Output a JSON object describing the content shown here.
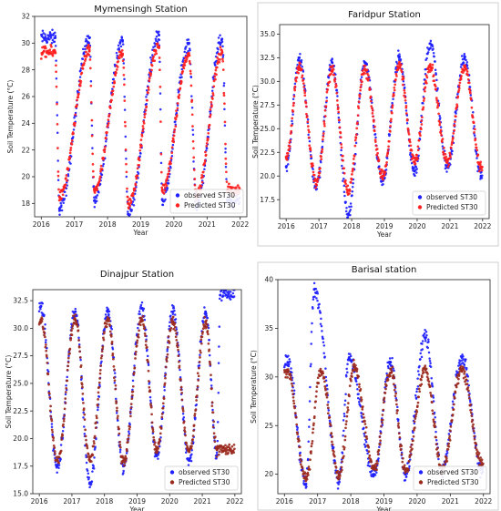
{
  "chart_data": [
    {
      "type": "scatter",
      "title": "Mymensingh Station",
      "xlabel": "Year",
      "ylabel": "Soil Temperature (°C)",
      "xlim": [
        2015.8,
        2022.2
      ],
      "ylim": [
        17,
        32
      ],
      "xticks": [
        2016,
        2017,
        2018,
        2019,
        2020,
        2021,
        2022
      ],
      "yticks": [
        18,
        20,
        22,
        24,
        26,
        28,
        30,
        32
      ],
      "legend_position": "bottom-right",
      "series": [
        {
          "name": "observed ST30",
          "color": "#1f1fff",
          "peak_days": [
            {
              "x": 2016.42,
              "y": 30.4
            },
            {
              "x": 2017.45,
              "y": 30.4
            },
            {
              "x": 2018.45,
              "y": 30.2
            },
            {
              "x": 2019.55,
              "y": 30.6
            },
            {
              "x": 2020.45,
              "y": 30.0
            },
            {
              "x": 2021.45,
              "y": 30.3
            }
          ],
          "trough_days": [
            {
              "x": 2016.55,
              "y": 17.6
            },
            {
              "x": 2017.6,
              "y": 18.2
            },
            {
              "x": 2018.62,
              "y": 17.2
            },
            {
              "x": 2019.65,
              "y": 18.3
            },
            {
              "x": 2020.68,
              "y": 17.8
            },
            {
              "x": 2021.62,
              "y": 18.2
            }
          ]
        },
        {
          "name": "Predicted ST30",
          "color": "#ff2020",
          "peak_days": [
            {
              "x": 2016.42,
              "y": 29.3
            },
            {
              "x": 2017.45,
              "y": 29.4
            },
            {
              "x": 2018.45,
              "y": 29.2
            },
            {
              "x": 2019.55,
              "y": 29.7
            },
            {
              "x": 2020.45,
              "y": 29.1
            },
            {
              "x": 2021.45,
              "y": 29.3
            }
          ],
          "trough_days": [
            {
              "x": 2016.55,
              "y": 18.5
            },
            {
              "x": 2017.6,
              "y": 19.0
            },
            {
              "x": 2018.62,
              "y": 18.0
            },
            {
              "x": 2019.65,
              "y": 19.0
            },
            {
              "x": 2020.68,
              "y": 18.6
            },
            {
              "x": 2021.62,
              "y": 19.0
            }
          ]
        }
      ]
    },
    {
      "type": "scatter",
      "title": "Faridpur Station",
      "xlabel": "Year",
      "ylabel": "Soil Temperature (°C)",
      "xlim": [
        2015.8,
        2022.2
      ],
      "ylim": [
        15.5,
        36
      ],
      "xticks": [
        2016,
        2017,
        2018,
        2019,
        2020,
        2021,
        2022
      ],
      "yticks": [
        17.5,
        20.0,
        22.5,
        25.0,
        27.5,
        30.0,
        32.5,
        35.0
      ],
      "legend_position": "bottom-right",
      "series": [
        {
          "name": "observed ST30",
          "color": "#1f1fff",
          "peak_days": [
            {
              "x": 2016.4,
              "y": 32.5
            },
            {
              "x": 2017.4,
              "y": 32.0
            },
            {
              "x": 2018.4,
              "y": 32.0
            },
            {
              "x": 2019.45,
              "y": 32.5
            },
            {
              "x": 2020.4,
              "y": 34.0
            },
            {
              "x": 2021.45,
              "y": 32.5
            }
          ],
          "trough_days": [
            {
              "x": 2016.0,
              "y": 21.0
            },
            {
              "x": 2016.92,
              "y": 19.0
            },
            {
              "x": 2017.9,
              "y": 16.0
            },
            {
              "x": 2018.95,
              "y": 19.5
            },
            {
              "x": 2019.92,
              "y": 20.5
            },
            {
              "x": 2020.92,
              "y": 21.0
            },
            {
              "x": 2021.95,
              "y": 20.0
            }
          ]
        },
        {
          "name": "Predicted ST30",
          "color": "#ff2020",
          "peak_days": [
            {
              "x": 2016.4,
              "y": 31.5
            },
            {
              "x": 2017.4,
              "y": 31.2
            },
            {
              "x": 2018.4,
              "y": 31.3
            },
            {
              "x": 2019.45,
              "y": 31.5
            },
            {
              "x": 2020.4,
              "y": 31.6
            },
            {
              "x": 2021.45,
              "y": 31.5
            }
          ],
          "trough_days": [
            {
              "x": 2016.0,
              "y": 22.0
            },
            {
              "x": 2016.92,
              "y": 19.5
            },
            {
              "x": 2017.9,
              "y": 18.5
            },
            {
              "x": 2018.95,
              "y": 20.0
            },
            {
              "x": 2019.92,
              "y": 21.5
            },
            {
              "x": 2020.92,
              "y": 21.5
            },
            {
              "x": 2021.95,
              "y": 21.0
            }
          ]
        }
      ]
    },
    {
      "type": "scatter",
      "title": "Dinajpur Station",
      "xlabel": "Year",
      "ylabel": "Soil Temperature (°C)",
      "xlim": [
        2015.8,
        2022.2
      ],
      "ylim": [
        15,
        33.5
      ],
      "xticks": [
        2016,
        2018,
        2020,
        2022
      ],
      "xticklabels_extra": [
        2017,
        2019,
        2021
      ],
      "yticks": [
        15.0,
        17.5,
        20.0,
        22.5,
        25.0,
        27.5,
        30.0,
        32.5
      ],
      "legend_position": "bottom-right",
      "series": [
        {
          "name": "observed ST30",
          "color": "#1f1fff",
          "peak_days": [
            {
              "x": 2016.05,
              "y": 32.0
            },
            {
              "x": 2017.1,
              "y": 31.5
            },
            {
              "x": 2018.1,
              "y": 31.5
            },
            {
              "x": 2019.15,
              "y": 31.8
            },
            {
              "x": 2020.1,
              "y": 31.5
            },
            {
              "x": 2021.1,
              "y": 31.5
            },
            {
              "x": 2021.55,
              "y": 33.0
            }
          ],
          "trough_days": [
            {
              "x": 2016.55,
              "y": 17.5
            },
            {
              "x": 2017.55,
              "y": 16.0
            },
            {
              "x": 2018.58,
              "y": 17.5
            },
            {
              "x": 2019.6,
              "y": 18.5
            },
            {
              "x": 2020.6,
              "y": 18.0
            },
            {
              "x": 2021.45,
              "y": 18.5
            }
          ]
        },
        {
          "name": "Predicted ST30",
          "color": "#9b2a1e",
          "peak_days": [
            {
              "x": 2016.05,
              "y": 30.8
            },
            {
              "x": 2017.1,
              "y": 30.8
            },
            {
              "x": 2018.1,
              "y": 30.8
            },
            {
              "x": 2019.15,
              "y": 30.8
            },
            {
              "x": 2020.1,
              "y": 30.6
            },
            {
              "x": 2021.1,
              "y": 30.6
            }
          ],
          "trough_days": [
            {
              "x": 2016.55,
              "y": 18.0
            },
            {
              "x": 2017.55,
              "y": 18.0
            },
            {
              "x": 2018.58,
              "y": 18.0
            },
            {
              "x": 2019.6,
              "y": 19.0
            },
            {
              "x": 2020.6,
              "y": 18.8
            },
            {
              "x": 2021.45,
              "y": 19.0
            }
          ]
        }
      ]
    },
    {
      "type": "scatter",
      "title": "Barisal station",
      "xlabel": "Year",
      "ylabel": "Soil Temperature (°C)",
      "xlim": [
        2015.8,
        2022.2
      ],
      "ylim": [
        18,
        40
      ],
      "xticks": [
        2016,
        2017,
        2018,
        2019,
        2020,
        2021,
        2022
      ],
      "yticks": [
        20,
        25,
        30,
        35,
        40
      ],
      "legend_position": "bottom-right",
      "series": [
        {
          "name": "observed ST30",
          "color": "#1f1fff",
          "peak_days": [
            {
              "x": 2016.1,
              "y": 31.5
            },
            {
              "x": 2016.9,
              "y": 39.0
            },
            {
              "x": 2017.95,
              "y": 32.0
            },
            {
              "x": 2019.2,
              "y": 31.5
            },
            {
              "x": 2020.25,
              "y": 34.0
            },
            {
              "x": 2021.35,
              "y": 32.0
            }
          ],
          "trough_days": [
            {
              "x": 2016.65,
              "y": 19.0
            },
            {
              "x": 2017.65,
              "y": 19.5
            },
            {
              "x": 2018.7,
              "y": 20.0
            },
            {
              "x": 2019.65,
              "y": 20.0
            },
            {
              "x": 2020.75,
              "y": 20.5
            },
            {
              "x": 2021.95,
              "y": 20.5
            }
          ]
        },
        {
          "name": "Predicted ST30",
          "color": "#9b2a1e",
          "peak_days": [
            {
              "x": 2016.1,
              "y": 30.5
            },
            {
              "x": 2017.1,
              "y": 30.5
            },
            {
              "x": 2018.1,
              "y": 31.0
            },
            {
              "x": 2019.2,
              "y": 30.8
            },
            {
              "x": 2020.25,
              "y": 30.8
            },
            {
              "x": 2021.35,
              "y": 30.8
            }
          ],
          "trough_days": [
            {
              "x": 2016.65,
              "y": 19.5
            },
            {
              "x": 2017.65,
              "y": 20.0
            },
            {
              "x": 2018.7,
              "y": 20.5
            },
            {
              "x": 2019.65,
              "y": 20.5
            },
            {
              "x": 2020.75,
              "y": 20.5
            },
            {
              "x": 2021.95,
              "y": 21.0
            }
          ]
        }
      ]
    }
  ]
}
